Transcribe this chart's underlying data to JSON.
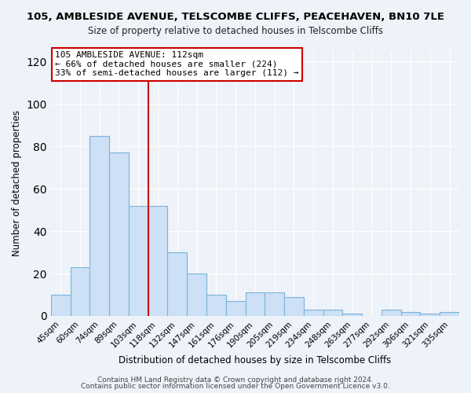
{
  "title": "105, AMBLESIDE AVENUE, TELSCOMBE CLIFFS, PEACEHAVEN, BN10 7LE",
  "subtitle": "Size of property relative to detached houses in Telscombe Cliffs",
  "xlabel": "Distribution of detached houses by size in Telscombe Cliffs",
  "ylabel": "Number of detached properties",
  "bin_labels": [
    "45sqm",
    "60sqm",
    "74sqm",
    "89sqm",
    "103sqm",
    "118sqm",
    "132sqm",
    "147sqm",
    "161sqm",
    "176sqm",
    "190sqm",
    "205sqm",
    "219sqm",
    "234sqm",
    "248sqm",
    "263sqm",
    "277sqm",
    "292sqm",
    "306sqm",
    "321sqm",
    "335sqm"
  ],
  "bar_values": [
    10,
    23,
    85,
    77,
    52,
    52,
    30,
    20,
    10,
    7,
    11,
    11,
    9,
    3,
    3,
    1,
    0,
    3,
    2,
    1,
    2
  ],
  "bar_color": "#cde0f5",
  "bar_edge_color": "#7ab3d9",
  "vline_x": 5,
  "vline_color": "#cc0000",
  "ylim": [
    0,
    125
  ],
  "yticks": [
    0,
    20,
    40,
    60,
    80,
    100,
    120
  ],
  "annotation_title": "105 AMBLESIDE AVENUE: 112sqm",
  "annotation_line1": "← 66% of detached houses are smaller (224)",
  "annotation_line2": "33% of semi-detached houses are larger (112) →",
  "footer1": "Contains HM Land Registry data © Crown copyright and database right 2024.",
  "footer2": "Contains public sector information licensed under the Open Government Licence v3.0.",
  "background_color": "#eef2f9",
  "plot_background": "#eef2f9",
  "grid_color": "#ffffff",
  "title_fontsize": 9.5,
  "subtitle_fontsize": 8.5,
  "axis_label_fontsize": 8.5,
  "tick_fontsize": 7.5,
  "footer_fontsize": 6.5,
  "annotation_fontsize": 8.0
}
